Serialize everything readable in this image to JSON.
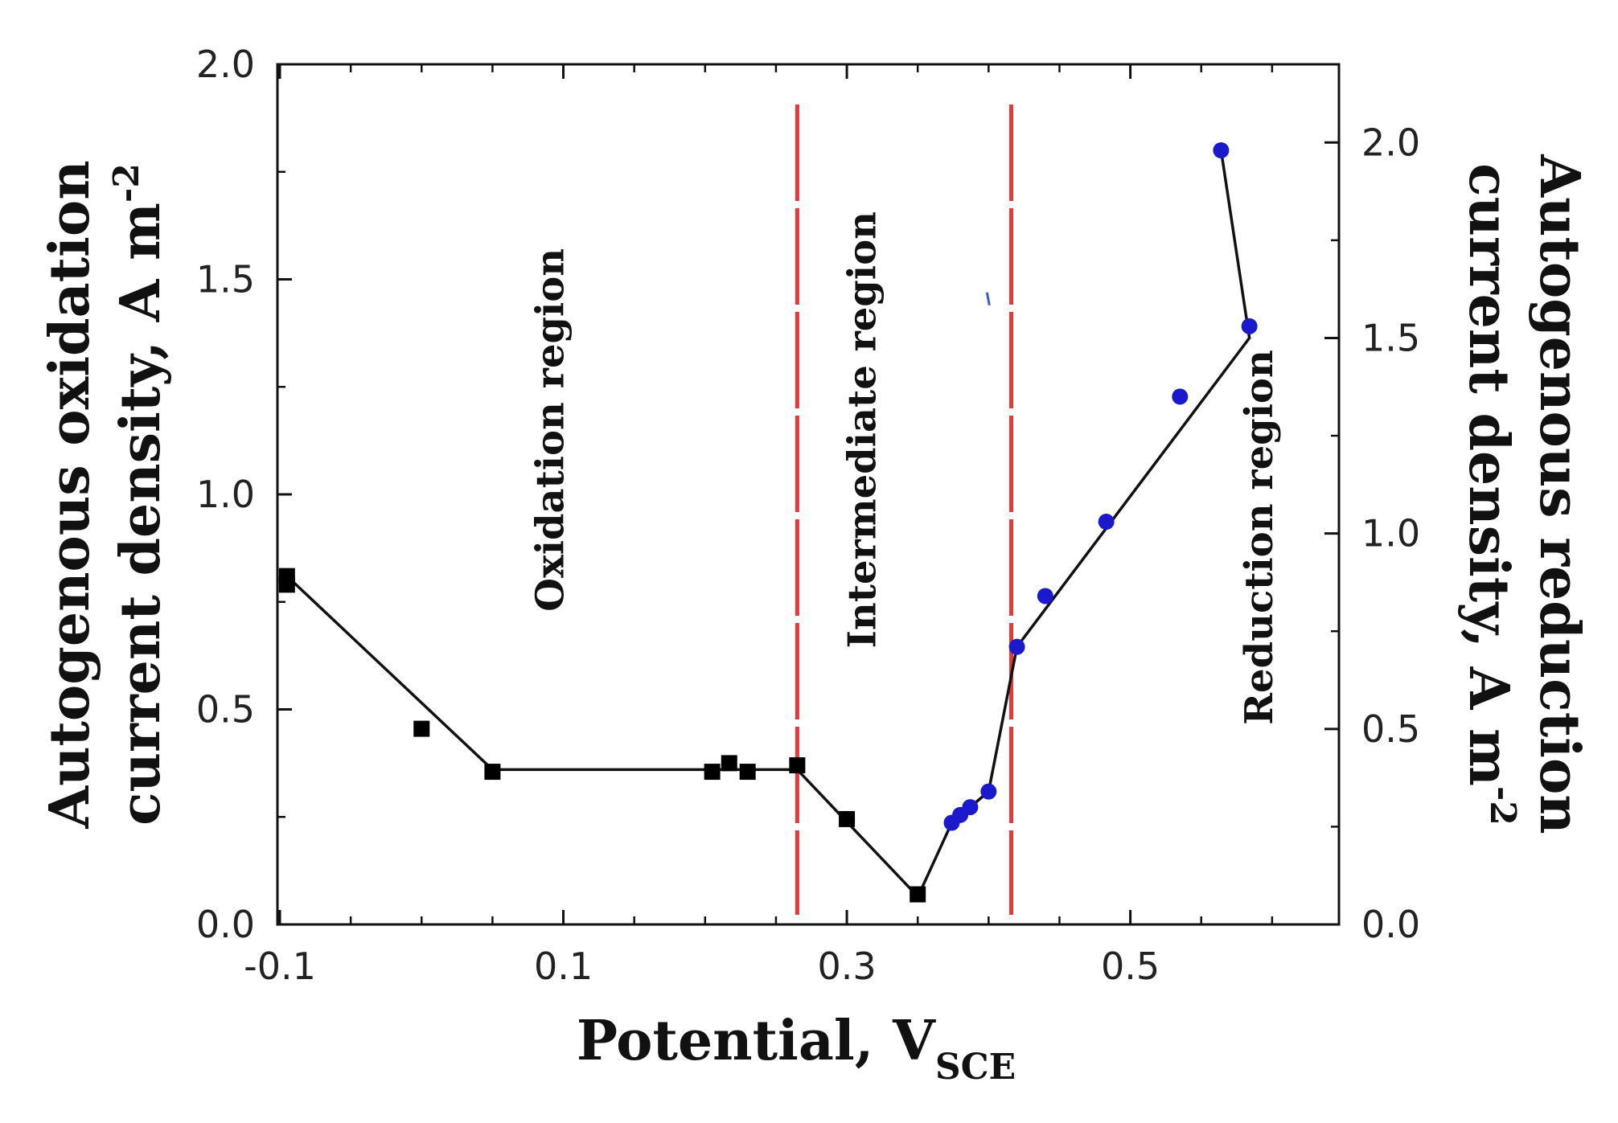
{
  "chart_data": {
    "type": "line",
    "xlabel": {
      "main": "Potential, V",
      "sub": "SCE"
    },
    "ylabel_left": {
      "line1": "Autogenous oxidation",
      "line2": "current density,  A m",
      "sup": "-2"
    },
    "ylabel_right": {
      "line1": "Autogenous reduction",
      "line2": "current density, A m",
      "sup": "-2"
    },
    "xlim": [
      -0.1,
      0.65
    ],
    "ylim_left": [
      0.0,
      2.0
    ],
    "ylim_right": [
      0.0,
      2.2
    ],
    "x_ticks": [
      -0.1,
      0.1,
      0.3,
      0.5
    ],
    "x_tick_labels": [
      "-0.1",
      "0.1",
      "0.3",
      "0.5"
    ],
    "y_left_ticks": [
      0.0,
      0.5,
      1.0,
      1.5,
      2.0
    ],
    "y_left_tick_labels": [
      "0.0",
      "0.5",
      "1.0",
      "1.5",
      "2.0"
    ],
    "y_right_ticks": [
      0.0,
      0.5,
      1.0,
      1.5,
      2.0
    ],
    "y_right_tick_labels": [
      "0.0",
      "0.5",
      "1.0",
      "1.5",
      "2.0"
    ],
    "series": [
      {
        "axis": "left",
        "marker": "square",
        "color": "#000000",
        "points": [
          [
            -0.095,
            0.81
          ],
          [
            -0.095,
            0.79
          ],
          [
            0.0,
            0.455
          ],
          [
            0.05,
            0.355
          ],
          [
            0.205,
            0.355
          ],
          [
            0.217,
            0.375
          ],
          [
            0.23,
            0.355
          ],
          [
            0.265,
            0.37
          ],
          [
            0.3,
            0.245
          ],
          [
            0.35,
            0.07
          ]
        ],
        "line": [
          [
            -0.095,
            0.81
          ],
          [
            0.05,
            0.36
          ],
          [
            0.265,
            0.36
          ],
          [
            0.35,
            0.065
          ]
        ]
      },
      {
        "axis": "right",
        "marker": "circle",
        "color": "#1a1acc",
        "points": [
          [
            0.374,
            0.26
          ],
          [
            0.38,
            0.28
          ],
          [
            0.387,
            0.3
          ],
          [
            0.4,
            0.34
          ],
          [
            0.42,
            0.71
          ],
          [
            0.44,
            0.84
          ],
          [
            0.483,
            1.03
          ],
          [
            0.535,
            1.35
          ],
          [
            0.564,
            1.98
          ],
          [
            0.584,
            1.53
          ]
        ],
        "line": [
          [
            0.35,
            0.07
          ],
          [
            0.374,
            0.26
          ],
          [
            0.4,
            0.34
          ],
          [
            0.42,
            0.71
          ],
          [
            0.584,
            1.5
          ],
          [
            0.564,
            1.98
          ]
        ]
      }
    ],
    "boundaries": {
      "x": [
        0.265,
        0.416
      ],
      "color": "#e23a3a",
      "style": "dashed"
    },
    "regions": [
      {
        "label": "Oxidation region",
        "x": 0.1,
        "y": 1.15
      },
      {
        "label": "Intermediate region",
        "x": 0.32,
        "y": 1.15
      },
      {
        "label": "Reduction region",
        "x": 0.6,
        "y": 0.9
      }
    ],
    "stray_mark": {
      "x": 0.4,
      "y": 1.6
    }
  }
}
